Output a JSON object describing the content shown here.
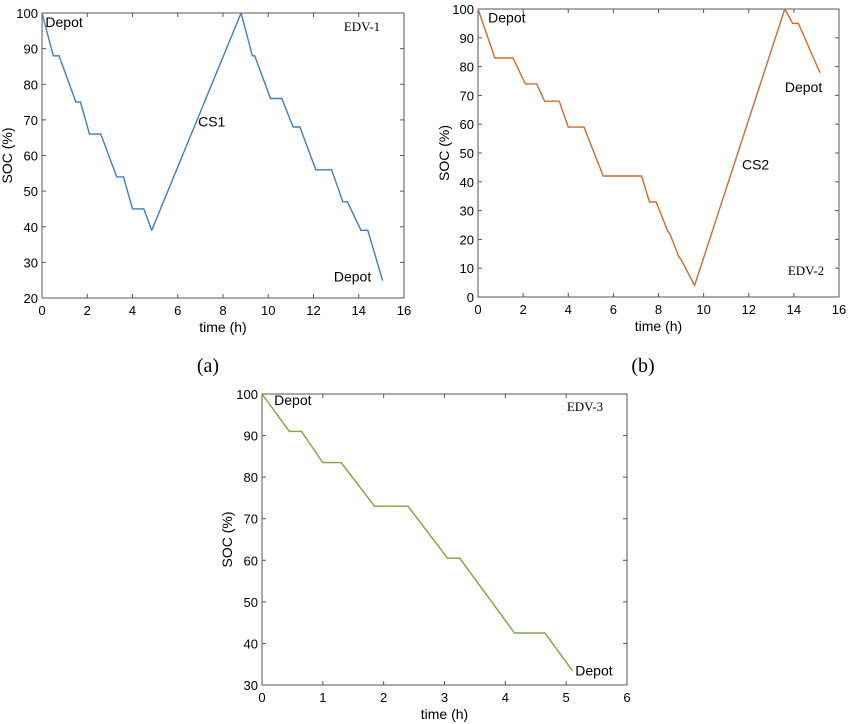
{
  "chart_data": [
    {
      "type": "line",
      "title": "EDV-1",
      "caption": "(a)",
      "xlabel": "time (h)",
      "ylabel": "SOC (%)",
      "xlim": [
        0,
        16
      ],
      "ylim": [
        20,
        100
      ],
      "xticks": [
        0,
        2,
        4,
        6,
        8,
        10,
        12,
        14,
        16
      ],
      "yticks": [
        20,
        30,
        40,
        50,
        60,
        70,
        80,
        90,
        100
      ],
      "color": "#3a7fc1",
      "series": [
        {
          "x": [
            0,
            0.5,
            0.75,
            1.5,
            1.7,
            2.1,
            2.6,
            3.3,
            3.6,
            4.0,
            4.5,
            4.85,
            8.8,
            9.3,
            9.4,
            10.1,
            10.6,
            11.1,
            11.4,
            12.1,
            12.8,
            13.3,
            13.5,
            14.1,
            14.4,
            15.05
          ],
          "y": [
            100,
            88,
            88,
            75,
            75,
            66,
            66,
            54,
            54,
            45,
            45,
            39,
            100,
            88,
            88,
            76,
            76,
            68,
            68,
            56,
            56,
            47,
            47,
            39,
            39,
            25
          ]
        }
      ],
      "annotations": [
        {
          "text": "Depot",
          "x": 0.15,
          "y": 97.5
        },
        {
          "text": "CS1",
          "x": 6.9,
          "y": 69.5
        },
        {
          "text": "Depot",
          "x": 12.9,
          "y": 26
        }
      ]
    },
    {
      "type": "line",
      "title": "EDV-2",
      "caption": "(b)",
      "xlabel": "time (h)",
      "ylabel": "SOC (%)",
      "xlim": [
        0,
        16
      ],
      "ylim": [
        0,
        100
      ],
      "xticks": [
        0,
        2,
        4,
        6,
        8,
        10,
        12,
        14,
        16
      ],
      "yticks": [
        0,
        10,
        20,
        30,
        40,
        50,
        60,
        70,
        80,
        90,
        100
      ],
      "color": "#d2692e",
      "series": [
        {
          "x": [
            0,
            0.75,
            1.55,
            2.1,
            2.6,
            2.95,
            3.6,
            4.0,
            4.7,
            5.55,
            7.25,
            7.6,
            7.9,
            8.4,
            8.5,
            8.9,
            9.0,
            9.6,
            13.6,
            13.95,
            14.2,
            15.15
          ],
          "y": [
            100,
            83,
            83,
            74,
            74,
            68,
            68,
            59,
            59,
            42,
            42,
            33,
            33,
            23,
            22,
            14,
            13,
            4,
            100,
            95,
            95,
            78
          ]
        }
      ],
      "annotations": [
        {
          "text": "Depot",
          "x": 0.45,
          "y": 97
        },
        {
          "text": "Depot",
          "x": 13.6,
          "y": 73
        },
        {
          "text": "CS2",
          "x": 11.7,
          "y": 46
        }
      ]
    },
    {
      "type": "line",
      "title": "EDV-3",
      "caption": "",
      "xlabel": "time (h)",
      "ylabel": "SOC (%)",
      "xlim": [
        0,
        6
      ],
      "ylim": [
        30,
        100
      ],
      "xticks": [
        0,
        1,
        2,
        3,
        4,
        5,
        6
      ],
      "yticks": [
        30,
        40,
        50,
        60,
        70,
        80,
        90,
        100
      ],
      "color": "#7aa73b",
      "series": [
        {
          "x": [
            0,
            0.45,
            0.65,
            1.0,
            1.3,
            1.85,
            2.4,
            3.05,
            3.25,
            4.15,
            4.65,
            5.1
          ],
          "y": [
            100,
            91,
            91,
            83.5,
            83.5,
            73,
            73,
            60.5,
            60.5,
            42.5,
            42.5,
            33.5
          ]
        }
      ],
      "annotations": [
        {
          "text": "Depot",
          "x": 0.2,
          "y": 98.5
        },
        {
          "text": "Depot",
          "x": 5.15,
          "y": 33.5
        }
      ]
    }
  ]
}
